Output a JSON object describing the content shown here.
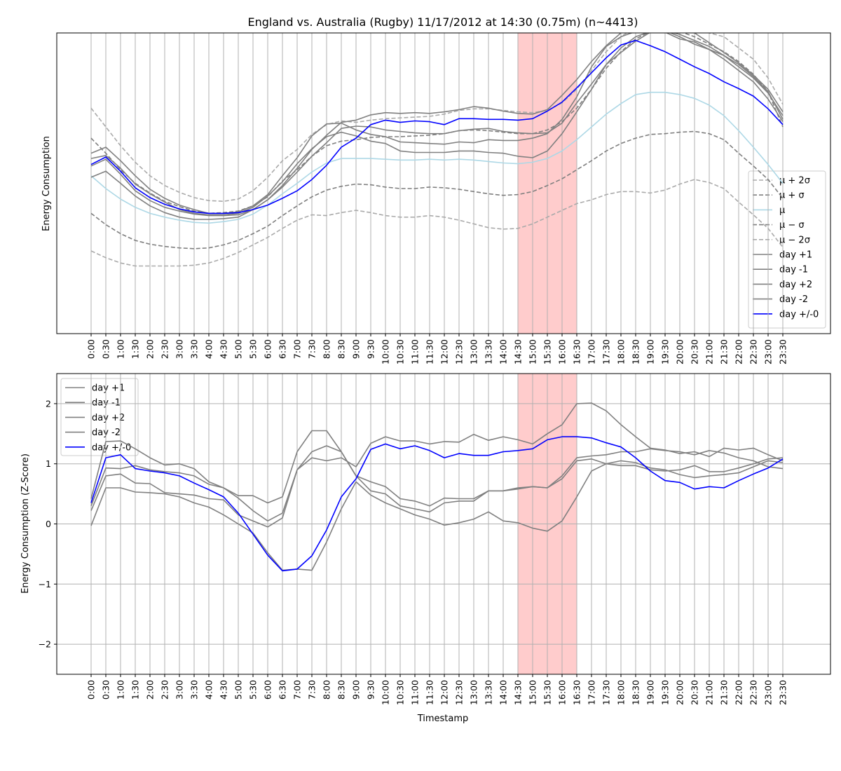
{
  "title": "England vs. Australia (Rugby) 11/17/2012 at 14:30 (0.75m) (n~4413)",
  "colors": {
    "stat_dark": "#7f7f7f",
    "stat_light": "#aaaaaa",
    "mean": "#add8e6",
    "day": "#808080",
    "event_day": "#0000ff",
    "highlight": "#ff9999"
  },
  "chart_data": [
    {
      "type": "line",
      "ylabel": "Energy Consumption",
      "xlabel": "",
      "x": [
        "0:00",
        "0:30",
        "1:00",
        "1:30",
        "2:00",
        "2:30",
        "3:00",
        "3:30",
        "4:00",
        "4:30",
        "5:00",
        "5:30",
        "6:00",
        "6:30",
        "7:00",
        "7:30",
        "8:00",
        "8:30",
        "9:00",
        "9:30",
        "10:00",
        "10:30",
        "11:00",
        "11:30",
        "12:00",
        "12:30",
        "13:00",
        "13:30",
        "14:00",
        "14:30",
        "15:00",
        "15:30",
        "16:00",
        "16:30",
        "17:00",
        "17:30",
        "18:00",
        "18:30",
        "19:00",
        "19:30",
        "20:00",
        "20:30",
        "21:00",
        "21:30",
        "22:00",
        "22:30",
        "23:00",
        "23:30"
      ],
      "ylim": [
        -0.2,
        3.8
      ],
      "highlight": [
        "14:30",
        "16:30"
      ],
      "grid": "vertical",
      "legend": "lower-right",
      "series": [
        {
          "name": "μ + 2σ",
          "style": "dashed",
          "color": "#aaaaaa",
          "values": [
            2.8,
            2.55,
            2.3,
            2.08,
            1.9,
            1.77,
            1.68,
            1.61,
            1.57,
            1.56,
            1.59,
            1.7,
            1.88,
            2.1,
            2.25,
            2.45,
            2.58,
            2.63,
            2.61,
            2.64,
            2.66,
            2.67,
            2.68,
            2.69,
            2.72,
            2.77,
            2.79,
            2.79,
            2.77,
            2.75,
            2.74,
            2.77,
            2.87,
            3.05,
            3.3,
            3.55,
            3.75,
            3.88,
            3.95,
            3.95,
            3.9,
            3.85,
            3.8,
            3.75,
            3.6,
            3.45,
            3.2,
            2.85
          ]
        },
        {
          "name": "μ + σ",
          "style": "dashed",
          "color": "#7f7f7f",
          "values": [
            2.4,
            2.2,
            1.98,
            1.8,
            1.67,
            1.56,
            1.49,
            1.43,
            1.4,
            1.41,
            1.43,
            1.5,
            1.62,
            1.83,
            1.98,
            2.16,
            2.3,
            2.36,
            2.38,
            2.41,
            2.42,
            2.42,
            2.43,
            2.44,
            2.46,
            2.5,
            2.51,
            2.5,
            2.48,
            2.46,
            2.46,
            2.51,
            2.62,
            2.8,
            3.05,
            3.33,
            3.55,
            3.72,
            3.82,
            3.85,
            3.82,
            3.75,
            3.65,
            3.55,
            3.42,
            3.25,
            3.02,
            2.55
          ]
        },
        {
          "name": "μ",
          "style": "solid",
          "color": "#add8e6",
          "values": [
            1.9,
            1.73,
            1.59,
            1.48,
            1.4,
            1.35,
            1.31,
            1.28,
            1.27,
            1.29,
            1.32,
            1.39,
            1.51,
            1.66,
            1.8,
            1.95,
            2.07,
            2.13,
            2.13,
            2.13,
            2.12,
            2.11,
            2.11,
            2.12,
            2.11,
            2.12,
            2.11,
            2.09,
            2.07,
            2.06,
            2.08,
            2.13,
            2.23,
            2.38,
            2.55,
            2.72,
            2.86,
            2.98,
            3.01,
            3.01,
            2.98,
            2.93,
            2.84,
            2.7,
            2.5,
            2.28,
            2.05,
            1.8
          ]
        },
        {
          "name": "μ − σ",
          "style": "dashed",
          "color": "#7f7f7f",
          "values": [
            1.4,
            1.25,
            1.13,
            1.04,
            0.99,
            0.96,
            0.94,
            0.93,
            0.94,
            0.98,
            1.04,
            1.13,
            1.23,
            1.37,
            1.5,
            1.62,
            1.71,
            1.76,
            1.79,
            1.78,
            1.75,
            1.73,
            1.73,
            1.75,
            1.74,
            1.72,
            1.69,
            1.66,
            1.64,
            1.65,
            1.69,
            1.77,
            1.86,
            1.98,
            2.1,
            2.23,
            2.33,
            2.4,
            2.45,
            2.46,
            2.48,
            2.49,
            2.46,
            2.38,
            2.2,
            2.03,
            1.85,
            1.6
          ]
        },
        {
          "name": "μ − 2σ",
          "style": "dashed",
          "color": "#aaaaaa",
          "values": [
            0.9,
            0.81,
            0.74,
            0.7,
            0.7,
            0.7,
            0.7,
            0.71,
            0.74,
            0.8,
            0.88,
            0.98,
            1.08,
            1.2,
            1.31,
            1.38,
            1.37,
            1.41,
            1.44,
            1.41,
            1.37,
            1.35,
            1.35,
            1.37,
            1.35,
            1.31,
            1.26,
            1.21,
            1.19,
            1.2,
            1.26,
            1.35,
            1.44,
            1.53,
            1.58,
            1.65,
            1.69,
            1.69,
            1.67,
            1.71,
            1.79,
            1.85,
            1.81,
            1.73,
            1.55,
            1.38,
            1.2,
            0.95
          ]
        },
        {
          "name": "day +1",
          "style": "solid",
          "color": "#808080",
          "values": [
            2.2,
            2.28,
            2.1,
            1.9,
            1.72,
            1.6,
            1.51,
            1.45,
            1.4,
            1.4,
            1.42,
            1.5,
            1.65,
            1.9,
            2.14,
            2.43,
            2.59,
            2.6,
            2.51,
            2.45,
            2.42,
            2.35,
            2.34,
            2.33,
            2.32,
            2.35,
            2.34,
            2.38,
            2.37,
            2.37,
            2.4,
            2.46,
            2.65,
            2.95,
            3.35,
            3.62,
            3.75,
            3.82,
            3.84,
            3.83,
            3.78,
            3.7,
            3.62,
            3.5,
            3.38,
            3.22,
            3.02,
            2.65
          ]
        },
        {
          "name": "day -1",
          "style": "solid",
          "color": "#808080",
          "values": [
            1.88,
            1.96,
            1.8,
            1.63,
            1.5,
            1.41,
            1.35,
            1.32,
            1.32,
            1.33,
            1.35,
            1.45,
            1.58,
            1.77,
            2.0,
            2.25,
            2.44,
            2.61,
            2.64,
            2.71,
            2.74,
            2.73,
            2.74,
            2.73,
            2.75,
            2.78,
            2.82,
            2.8,
            2.76,
            2.73,
            2.72,
            2.78,
            2.97,
            3.18,
            3.42,
            3.63,
            3.8,
            3.86,
            3.84,
            3.81,
            3.72,
            3.68,
            3.58,
            3.5,
            3.35,
            3.2,
            3.0,
            2.7
          ]
        },
        {
          "name": "day +2",
          "style": "solid",
          "color": "#808080",
          "values": [
            2.13,
            2.17,
            2.0,
            1.79,
            1.66,
            1.55,
            1.45,
            1.4,
            1.38,
            1.38,
            1.4,
            1.48,
            1.63,
            1.82,
            2.06,
            2.26,
            2.42,
            2.48,
            2.43,
            2.36,
            2.33,
            2.23,
            2.21,
            2.21,
            2.21,
            2.23,
            2.23,
            2.21,
            2.2,
            2.16,
            2.14,
            2.23,
            2.46,
            2.75,
            3.05,
            3.38,
            3.6,
            3.75,
            3.82,
            3.83,
            3.75,
            3.65,
            3.58,
            3.45,
            3.3,
            3.15,
            2.92,
            2.62
          ]
        },
        {
          "name": "day -2",
          "style": "solid",
          "color": "#808080",
          "values": [
            2.03,
            2.12,
            1.92,
            1.7,
            1.57,
            1.48,
            1.43,
            1.39,
            1.37,
            1.37,
            1.38,
            1.45,
            1.58,
            1.75,
            1.95,
            2.16,
            2.34,
            2.53,
            2.56,
            2.55,
            2.51,
            2.49,
            2.47,
            2.46,
            2.46,
            2.5,
            2.52,
            2.53,
            2.49,
            2.47,
            2.46,
            2.47,
            2.6,
            2.87,
            3.12,
            3.38,
            3.54,
            3.69,
            3.81,
            3.83,
            3.82,
            3.8,
            3.67,
            3.54,
            3.4,
            3.24,
            3.05,
            2.75
          ]
        },
        {
          "name": "day +/-0",
          "style": "solid",
          "color": "#0000ff",
          "values": [
            2.05,
            2.15,
            1.96,
            1.74,
            1.61,
            1.52,
            1.46,
            1.42,
            1.4,
            1.4,
            1.41,
            1.45,
            1.51,
            1.6,
            1.7,
            1.85,
            2.04,
            2.28,
            2.4,
            2.58,
            2.64,
            2.61,
            2.63,
            2.62,
            2.58,
            2.66,
            2.66,
            2.65,
            2.65,
            2.64,
            2.66,
            2.76,
            2.88,
            3.07,
            3.27,
            3.47,
            3.64,
            3.7,
            3.63,
            3.55,
            3.45,
            3.35,
            3.26,
            3.15,
            3.06,
            2.96,
            2.79,
            2.58
          ]
        }
      ]
    },
    {
      "type": "line",
      "ylabel": "Energy Consumption (Z-Score)",
      "xlabel": "Timestamp",
      "x": [
        "0:00",
        "0:30",
        "1:00",
        "1:30",
        "2:00",
        "2:30",
        "3:00",
        "3:30",
        "4:00",
        "4:30",
        "5:00",
        "5:30",
        "6:00",
        "6:30",
        "7:00",
        "7:30",
        "8:00",
        "8:30",
        "9:00",
        "9:30",
        "10:00",
        "10:30",
        "11:00",
        "11:30",
        "12:00",
        "12:30",
        "13:00",
        "13:30",
        "14:00",
        "14:30",
        "15:00",
        "15:30",
        "16:00",
        "16:30",
        "17:00",
        "17:30",
        "18:00",
        "18:30",
        "19:00",
        "19:30",
        "20:00",
        "20:30",
        "21:00",
        "21:30",
        "22:00",
        "22:30",
        "23:00",
        "23:30"
      ],
      "ylim": [
        -2.5,
        2.5
      ],
      "yticks": [
        -2,
        -1,
        0,
        1,
        2
      ],
      "highlight": [
        "14:30",
        "16:30"
      ],
      "grid": "both",
      "legend": "upper-left",
      "series": [
        {
          "name": "day +1",
          "style": "solid",
          "color": "#808080",
          "values": [
            0.42,
            1.37,
            1.38,
            1.25,
            1.1,
            0.98,
            1.0,
            0.92,
            0.7,
            0.6,
            0.47,
            0.47,
            0.35,
            0.45,
            1.2,
            1.55,
            1.55,
            1.2,
            0.8,
            0.55,
            0.5,
            0.3,
            0.25,
            0.2,
            0.35,
            0.38,
            0.38,
            0.55,
            0.55,
            0.58,
            0.62,
            0.6,
            0.8,
            1.1,
            1.13,
            1.15,
            1.2,
            1.2,
            1.25,
            1.22,
            1.2,
            1.15,
            1.22,
            1.18,
            1.1,
            1.05,
            0.95,
            0.92
          ]
        },
        {
          "name": "day -1",
          "style": "solid",
          "color": "#808080",
          "values": [
            0.3,
            0.93,
            0.92,
            0.97,
            0.9,
            0.87,
            0.85,
            0.8,
            0.66,
            0.6,
            0.43,
            0.22,
            0.05,
            0.18,
            0.9,
            1.1,
            1.05,
            1.1,
            0.95,
            1.34,
            1.45,
            1.38,
            1.38,
            1.33,
            1.37,
            1.36,
            1.49,
            1.39,
            1.45,
            1.4,
            1.33,
            1.5,
            1.65,
            2.0,
            2.01,
            1.88,
            1.65,
            1.45,
            1.26,
            1.23,
            1.17,
            1.2,
            1.12,
            1.26,
            1.23,
            1.26,
            1.15,
            1.05
          ]
        },
        {
          "name": "day +2",
          "style": "solid",
          "color": "#808080",
          "values": [
            0.22,
            0.8,
            0.83,
            0.68,
            0.67,
            0.52,
            0.5,
            0.48,
            0.42,
            0.4,
            0.15,
            0.05,
            -0.05,
            0.1,
            0.9,
            1.2,
            1.3,
            1.2,
            0.8,
            0.7,
            0.62,
            0.42,
            0.38,
            0.3,
            0.43,
            0.42,
            0.42,
            0.55,
            0.55,
            0.6,
            0.62,
            0.6,
            0.75,
            1.05,
            1.08,
            1.0,
            0.97,
            0.97,
            0.9,
            0.88,
            0.9,
            0.97,
            0.87,
            0.87,
            0.93,
            1.0,
            1.08,
            1.1
          ]
        },
        {
          "name": "day -2",
          "style": "solid",
          "color": "#808080",
          "values": [
            -0.03,
            0.6,
            0.6,
            0.53,
            0.52,
            0.5,
            0.45,
            0.35,
            0.28,
            0.15,
            0.0,
            -0.15,
            -0.48,
            -0.77,
            -0.75,
            -0.77,
            -0.3,
            0.25,
            0.7,
            0.48,
            0.35,
            0.25,
            0.15,
            0.08,
            -0.02,
            0.02,
            0.08,
            0.2,
            0.05,
            0.02,
            -0.07,
            -0.12,
            0.05,
            0.45,
            0.88,
            1.0,
            1.05,
            1.02,
            0.93,
            0.9,
            0.82,
            0.77,
            0.8,
            0.82,
            0.85,
            0.95,
            1.05,
            1.02
          ]
        },
        {
          "name": "day +/-0",
          "style": "solid",
          "color": "#0000ff",
          "values": [
            0.35,
            1.1,
            1.15,
            0.92,
            0.88,
            0.85,
            0.8,
            0.68,
            0.57,
            0.45,
            0.18,
            -0.17,
            -0.52,
            -0.78,
            -0.75,
            -0.53,
            -0.1,
            0.45,
            0.75,
            1.24,
            1.33,
            1.25,
            1.3,
            1.22,
            1.1,
            1.17,
            1.14,
            1.14,
            1.2,
            1.22,
            1.25,
            1.4,
            1.45,
            1.45,
            1.43,
            1.35,
            1.28,
            1.1,
            0.88,
            0.72,
            0.69,
            0.58,
            0.62,
            0.6,
            0.72,
            0.83,
            0.93,
            1.08
          ]
        }
      ]
    }
  ]
}
